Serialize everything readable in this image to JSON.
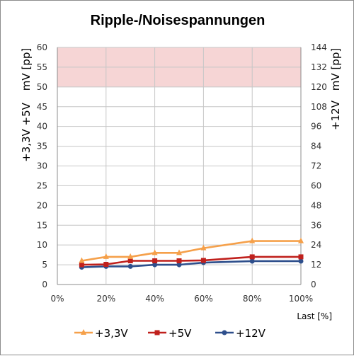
{
  "chart_data": {
    "type": "line",
    "title": "Ripple-/Noisespannungen",
    "xlabel": "Last [%]",
    "x": [
      10,
      20,
      30,
      40,
      50,
      60,
      80,
      100
    ],
    "x_ticks": [
      "0%",
      "20%",
      "40%",
      "60%",
      "80%",
      "100%"
    ],
    "xlim": [
      0,
      100
    ],
    "y_left": {
      "label_lines": [
        "mV [pp]",
        "+3,3V +5V"
      ],
      "lim": [
        0,
        60
      ],
      "ticks": [
        "0",
        "5",
        "10",
        "15",
        "20",
        "25",
        "30",
        "35",
        "40",
        "45",
        "50",
        "55",
        "60"
      ]
    },
    "y_right": {
      "label_lines": [
        "mV [pp]",
        "+12V"
      ],
      "lim": [
        0,
        144
      ],
      "ticks": [
        "0",
        "12",
        "24",
        "36",
        "48",
        "60",
        "72",
        "84",
        "96",
        "108",
        "120",
        "132",
        "144"
      ]
    },
    "limit_band": {
      "from": 50,
      "to": 60,
      "color": "#f6d5d5"
    },
    "grid": true,
    "legend": "bottom",
    "series": [
      {
        "name": "+3,3V",
        "axis": "left",
        "color": "#f5a04a",
        "marker": "triangle",
        "values": [
          6,
          7,
          7,
          8,
          8,
          9.2,
          11,
          11
        ]
      },
      {
        "name": "+5V",
        "axis": "left",
        "color": "#c0201c",
        "marker": "square",
        "values": [
          5,
          5.1,
          6,
          6,
          6,
          6.1,
          7,
          7
        ]
      },
      {
        "name": "+12V",
        "axis": "right",
        "color": "#2e4f8c",
        "marker": "circle",
        "values": [
          10.5,
          11,
          11,
          12,
          12,
          13.3,
          14.2,
          14.2
        ]
      }
    ]
  }
}
